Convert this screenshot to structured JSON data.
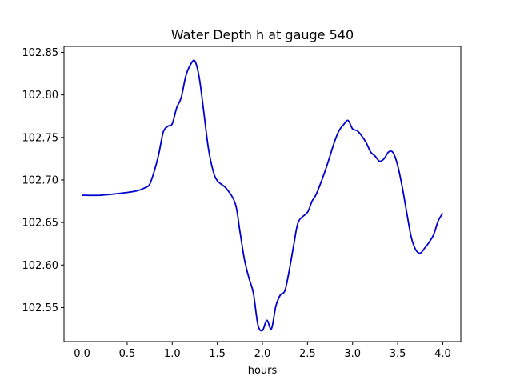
{
  "chart_data": {
    "type": "line",
    "title": "Water Depth h at gauge 540",
    "xlabel": "hours",
    "ylabel": "",
    "xlim": [
      -0.2,
      4.2
    ],
    "ylim": [
      102.51,
      102.857
    ],
    "xticks": [
      0.0,
      0.5,
      1.0,
      1.5,
      2.0,
      2.5,
      3.0,
      3.5,
      4.0
    ],
    "xtick_labels": [
      "0.0",
      "0.5",
      "1.0",
      "1.5",
      "2.0",
      "2.5",
      "3.0",
      "3.5",
      "4.0"
    ],
    "yticks": [
      102.55,
      102.6,
      102.65,
      102.7,
      102.75,
      102.8,
      102.85
    ],
    "ytick_labels": [
      "102.55",
      "102.60",
      "102.65",
      "102.70",
      "102.75",
      "102.80",
      "102.85"
    ],
    "grid": false,
    "series": [
      {
        "color": "#0000cc",
        "x": [
          0.0,
          0.2,
          0.4,
          0.6,
          0.7,
          0.75,
          0.8,
          0.85,
          0.9,
          0.95,
          1.0,
          1.05,
          1.1,
          1.15,
          1.2,
          1.25,
          1.3,
          1.35,
          1.4,
          1.45,
          1.5,
          1.6,
          1.7,
          1.75,
          1.8,
          1.85,
          1.9,
          1.95,
          2.0,
          2.05,
          2.1,
          2.15,
          2.2,
          2.25,
          2.3,
          2.35,
          2.4,
          2.5,
          2.55,
          2.6,
          2.7,
          2.8,
          2.85,
          2.9,
          2.95,
          3.0,
          3.05,
          3.1,
          3.15,
          3.2,
          3.25,
          3.3,
          3.35,
          3.4,
          3.45,
          3.5,
          3.55,
          3.6,
          3.65,
          3.7,
          3.75,
          3.8,
          3.85,
          3.9,
          3.95,
          4.0
        ],
        "y": [
          102.682,
          102.682,
          102.684,
          102.687,
          102.691,
          102.695,
          102.71,
          102.73,
          102.756,
          102.763,
          102.766,
          102.785,
          102.797,
          102.822,
          102.835,
          102.84,
          102.82,
          102.78,
          102.738,
          102.712,
          102.699,
          102.69,
          102.672,
          102.64,
          102.607,
          102.585,
          102.567,
          102.53,
          102.523,
          102.535,
          102.525,
          102.552,
          102.565,
          102.57,
          102.595,
          102.625,
          102.651,
          102.662,
          102.675,
          102.684,
          102.712,
          102.745,
          102.758,
          102.765,
          102.77,
          102.76,
          102.758,
          102.752,
          102.744,
          102.733,
          102.728,
          102.722,
          102.725,
          102.733,
          102.732,
          102.717,
          102.692,
          102.662,
          102.633,
          102.618,
          102.614,
          102.62,
          102.627,
          102.636,
          102.652,
          102.661
        ]
      }
    ]
  }
}
